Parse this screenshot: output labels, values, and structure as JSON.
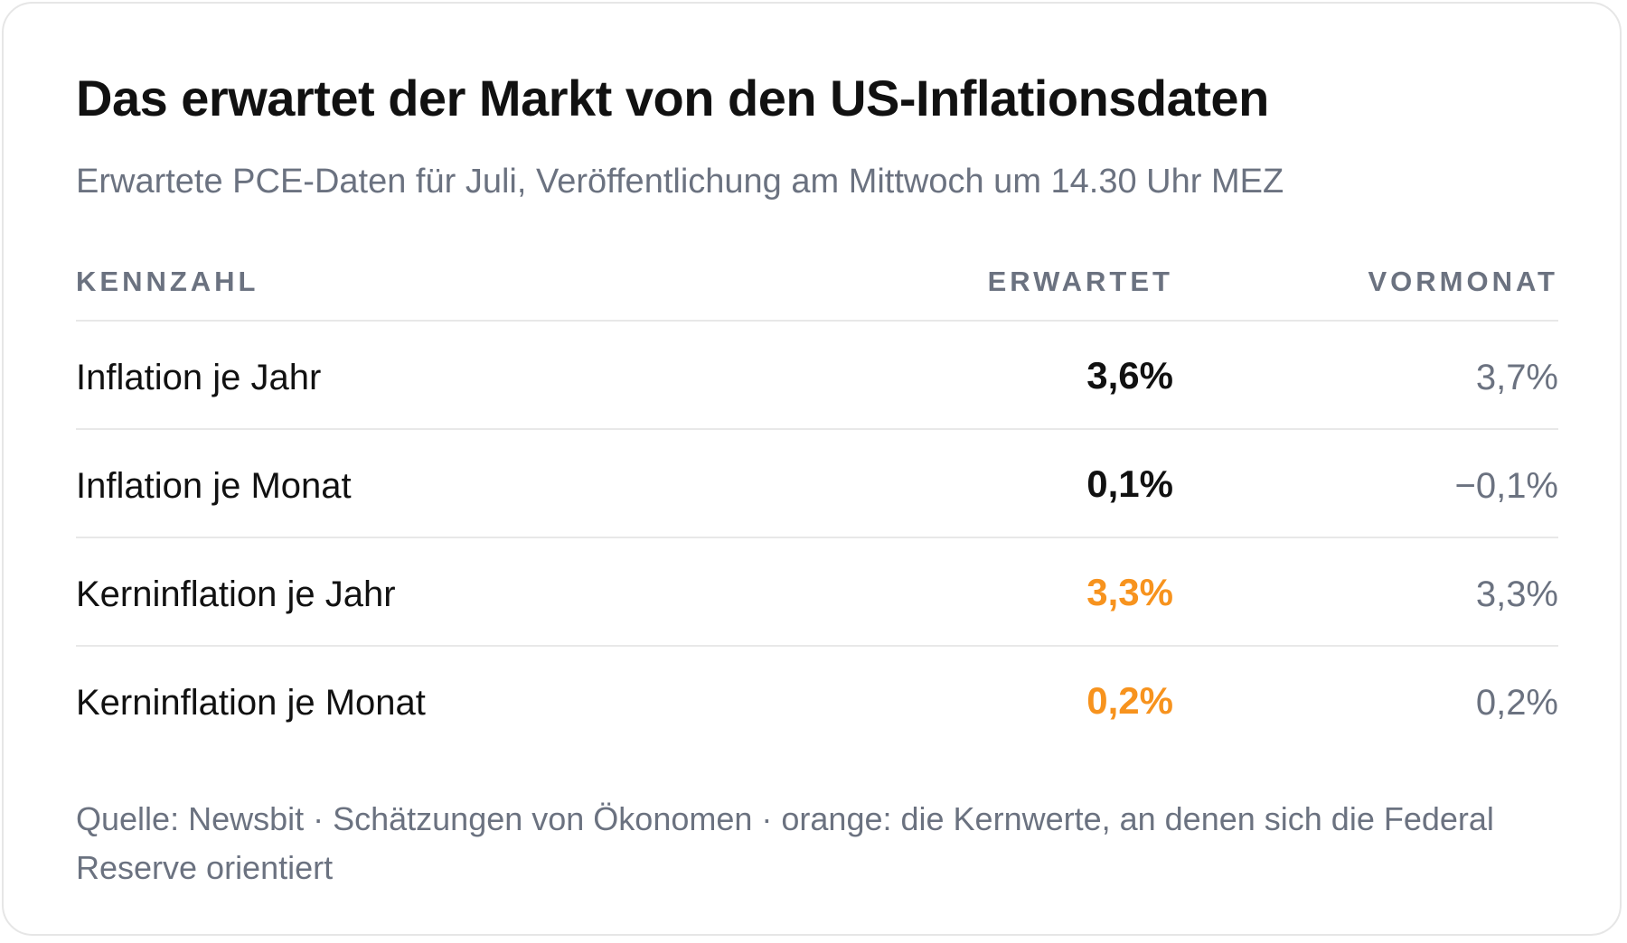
{
  "title": "Das erwartet der Markt von den US-Inflationsdaten",
  "subtitle": "Erwartete PCE-Daten für Juli, Veröffentlichung am Mittwoch um 14.30 Uhr MEZ",
  "columns": {
    "metric": "KENNZAHL",
    "expected": "ERWARTET",
    "previous": "VORMONAT"
  },
  "colors": {
    "core_highlight": "#f7931e",
    "text": "#111111",
    "muted": "#6b7280"
  },
  "chart_data": {
    "type": "table",
    "columns": [
      "KENNZAHL",
      "ERWARTET",
      "VORMONAT"
    ],
    "rows": [
      {
        "metric": "Inflation je Jahr",
        "expected": "3,6%",
        "previous": "3,7%",
        "core": false
      },
      {
        "metric": "Inflation je Monat",
        "expected": "0,1%",
        "previous": "−0,1%",
        "core": false
      },
      {
        "metric": "Kerninflation je Jahr",
        "expected": "3,3%",
        "previous": "3,3%",
        "core": true
      },
      {
        "metric": "Kerninflation je Monat",
        "expected": "0,2%",
        "previous": "0,2%",
        "core": true
      }
    ]
  },
  "footnote": "Quelle: Newsbit · Schätzungen von Ökonomen · orange: die Kernwerte, an denen sich die Federal Reserve orientiert"
}
